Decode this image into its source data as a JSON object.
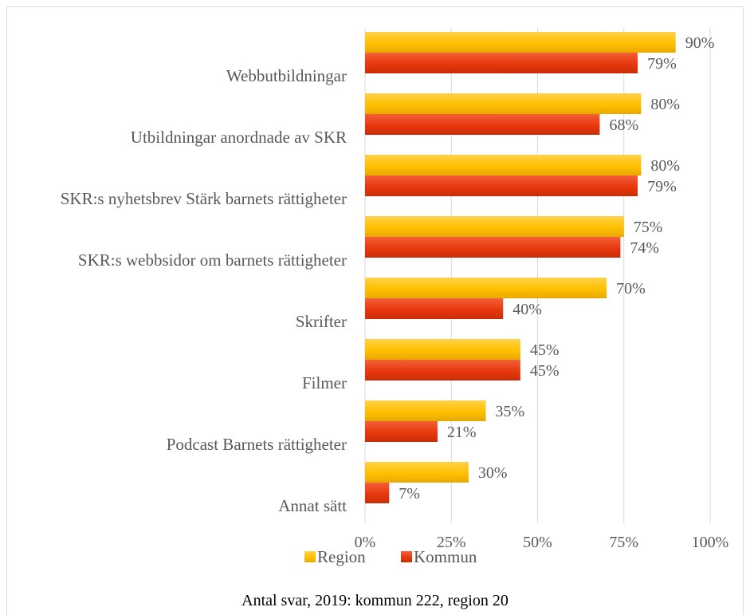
{
  "chart_data": {
    "type": "bar",
    "orientation": "horizontal",
    "categories": [
      "Webbutbildningar",
      "Utbildningar anordnade av SKR",
      "SKR:s nyhetsbrev Stärk barnets rättigheter",
      "SKR:s webbsidor om barnets rättigheter",
      "Skrifter",
      "Filmer",
      "Podcast Barnets rättigheter",
      "Annat sätt"
    ],
    "series": [
      {
        "name": "Region",
        "color": "#FFC000",
        "values": [
          90,
          80,
          80,
          75,
          70,
          45,
          35,
          30
        ],
        "labels": [
          "90%",
          "80%",
          "80%",
          "75%",
          "70%",
          "45%",
          "35%",
          "30%"
        ]
      },
      {
        "name": "Kommun",
        "color": "#E8380D",
        "values": [
          79,
          68,
          79,
          74,
          40,
          45,
          21,
          7
        ],
        "labels": [
          "79%",
          "68%",
          "79%",
          "74%",
          "40%",
          "45%",
          "21%",
          "7%"
        ]
      }
    ],
    "xlim": [
      0,
      100
    ],
    "xticks": [
      0,
      25,
      50,
      75,
      100
    ],
    "xtick_labels": [
      "0%",
      "25%",
      "50%",
      "75%",
      "100%"
    ],
    "grid": true,
    "legend_position": "bottom"
  },
  "caption": "Antal svar, 2019: kommun 222, region 20"
}
